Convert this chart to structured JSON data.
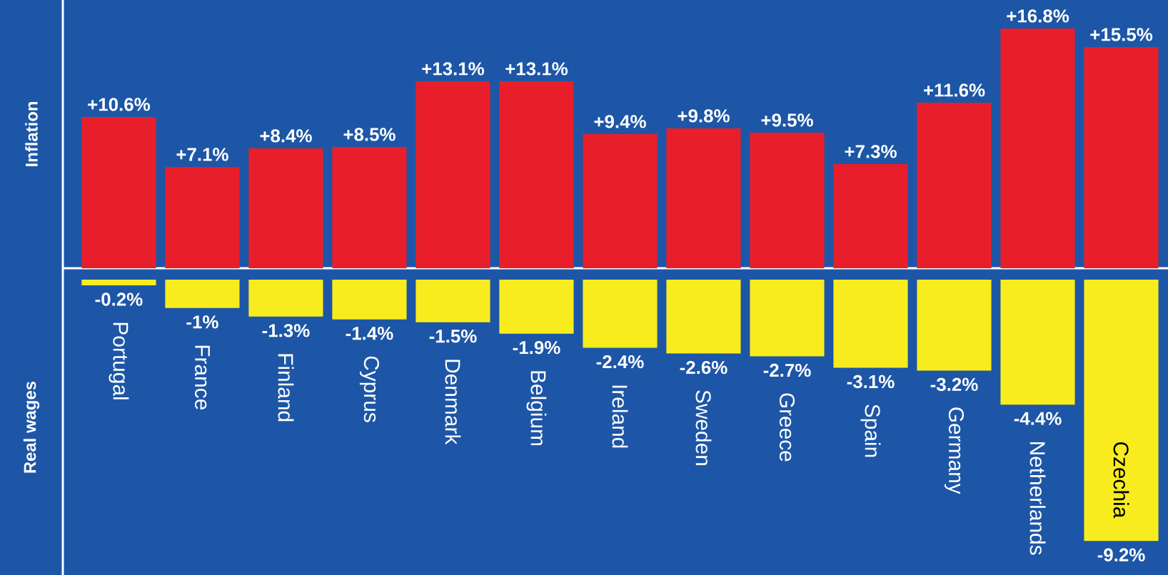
{
  "chart_data": [
    {
      "type": "bar",
      "ylabel": "Inflation",
      "categories": [
        null,
        null,
        null,
        null,
        null,
        null,
        null,
        null,
        null,
        null,
        null,
        null,
        null
      ],
      "ylim": [
        0,
        18.8
      ],
      "series": [
        {
          "color": "#e81f2a",
          "values": [
            10.6,
            7.1,
            8.4,
            8.5,
            13.1,
            13.1,
            9.4,
            9.8,
            9.5,
            7.3,
            11.6,
            16.8,
            15.5
          ],
          "value_labels": [
            "+10.6%",
            "+7.1%",
            "+8.4%",
            "+8.5%",
            "+13.1%",
            "+13.1%",
            "+9.4%",
            "+9.8%",
            "+9.5%",
            "+7.3%",
            "+11.6%",
            "+16.8%",
            "+15.5%"
          ]
        }
      ]
    },
    {
      "type": "bar",
      "ylabel": "Real wages",
      "categories": [
        "Portugal",
        "France",
        "Finland",
        "Cyprus",
        "Denmark",
        "Belgium",
        "Ireland",
        "Sweden",
        "Greece",
        "Spain",
        "Germany",
        "Netherlands",
        "Czechia"
      ],
      "tick_labels": "x",
      "ylim": [
        -10.4,
        0
      ],
      "series": [
        {
          "color": "#f8ec1e",
          "values": [
            -0.2,
            -1,
            -1.3,
            -1.4,
            -1.5,
            -1.9,
            -2.4,
            -2.6,
            -2.7,
            -3.1,
            -3.2,
            -4.4,
            -9.2
          ],
          "value_labels": [
            "-0.2%",
            "-1%",
            "-1.3%",
            "-1.4%",
            "-1.5%",
            "-1.9%",
            "-2.4%",
            "-2.6%",
            "-2.7%",
            "-3.1%",
            "-3.2%",
            "-4.4%",
            "-9.2%"
          ]
        }
      ]
    }
  ]
}
